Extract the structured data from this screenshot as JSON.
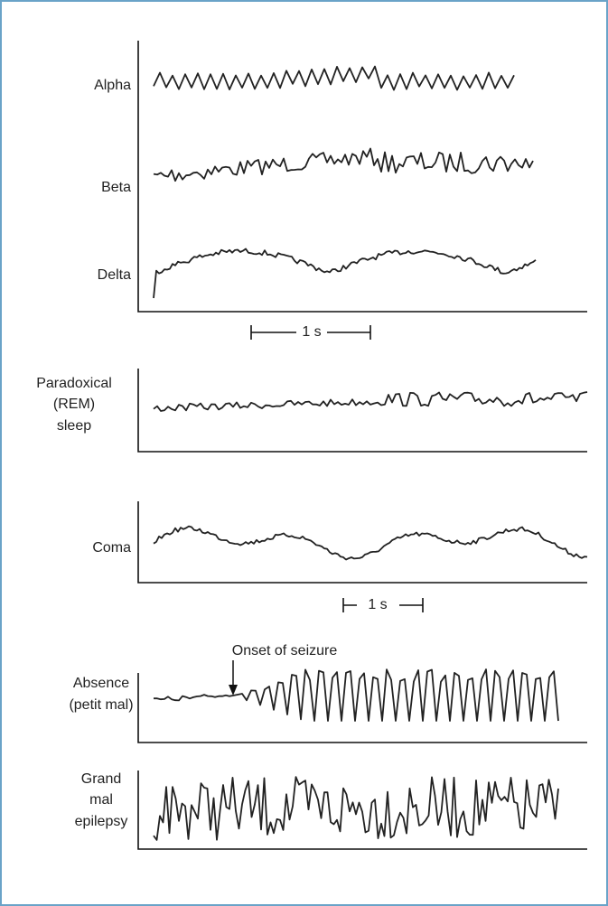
{
  "traces": {
    "alpha": {
      "lines": [
        "Alpha"
      ]
    },
    "beta": {
      "lines": [
        "Beta"
      ]
    },
    "delta": {
      "lines": [
        "Delta"
      ]
    },
    "rem": {
      "lines": [
        "Paradoxical",
        "(REM)",
        "sleep"
      ]
    },
    "coma": {
      "lines": [
        "Coma"
      ]
    },
    "absence": {
      "lines": [
        "Absence",
        "(petit mal)"
      ]
    },
    "grand_mal": {
      "lines": [
        "Grand",
        "mal",
        "epilepsy"
      ]
    }
  },
  "scale_bars": [
    "1 s",
    "1 s"
  ],
  "annotation": "Onset of seizure"
}
